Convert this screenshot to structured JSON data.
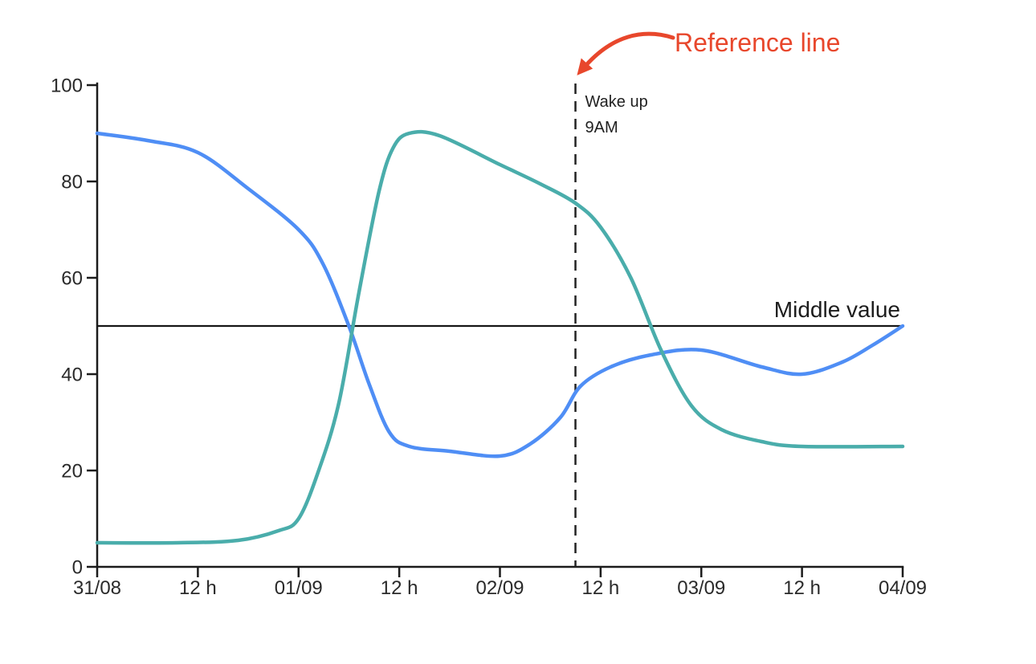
{
  "chart_data": {
    "type": "line",
    "title": "",
    "xlabel": "",
    "ylabel": "",
    "xlim_days": [
      0,
      4
    ],
    "ylim": [
      0,
      100
    ],
    "grid": false,
    "legend": "none",
    "x_ticks": [
      {
        "day": 0.0,
        "label": "31/08"
      },
      {
        "day": 0.5,
        "label": "12 h"
      },
      {
        "day": 1.0,
        "label": "01/09"
      },
      {
        "day": 1.5,
        "label": "12 h"
      },
      {
        "day": 2.0,
        "label": "02/09"
      },
      {
        "day": 2.5,
        "label": "12 h"
      },
      {
        "day": 3.0,
        "label": "03/09"
      },
      {
        "day": 3.5,
        "label": "12 h"
      },
      {
        "day": 4.0,
        "label": "04/09"
      }
    ],
    "y_ticks": [
      0,
      20,
      40,
      60,
      80,
      100
    ],
    "series": [
      {
        "name": "series-blue",
        "color": "#4f8ef5",
        "points": [
          [
            0.0,
            90
          ],
          [
            0.25,
            88.5
          ],
          [
            0.5,
            86
          ],
          [
            0.75,
            78.5
          ],
          [
            1.0,
            70
          ],
          [
            1.12,
            63
          ],
          [
            1.25,
            50
          ],
          [
            1.35,
            38
          ],
          [
            1.45,
            28
          ],
          [
            1.55,
            25
          ],
          [
            1.75,
            24
          ],
          [
            2.0,
            23
          ],
          [
            2.15,
            25.5
          ],
          [
            2.3,
            31
          ],
          [
            2.4,
            37.5
          ],
          [
            2.55,
            41.5
          ],
          [
            2.75,
            44
          ],
          [
            3.0,
            45
          ],
          [
            3.3,
            41.5
          ],
          [
            3.5,
            40
          ],
          [
            3.7,
            42.5
          ],
          [
            3.85,
            46
          ],
          [
            4.0,
            50
          ]
        ]
      },
      {
        "name": "series-teal",
        "color": "#4aadab",
        "points": [
          [
            0.0,
            5
          ],
          [
            0.4,
            5
          ],
          [
            0.7,
            5.5
          ],
          [
            0.9,
            7.5
          ],
          [
            1.0,
            10
          ],
          [
            1.1,
            20
          ],
          [
            1.2,
            34
          ],
          [
            1.3,
            57
          ],
          [
            1.4,
            78
          ],
          [
            1.47,
            87
          ],
          [
            1.55,
            90
          ],
          [
            1.7,
            89.5
          ],
          [
            2.0,
            83.5
          ],
          [
            2.2,
            79.5
          ],
          [
            2.375,
            75.5
          ],
          [
            2.5,
            70.5
          ],
          [
            2.65,
            60
          ],
          [
            2.8,
            45
          ],
          [
            2.95,
            33.5
          ],
          [
            3.1,
            28.5
          ],
          [
            3.3,
            26
          ],
          [
            3.5,
            25
          ],
          [
            4.0,
            25
          ]
        ]
      }
    ],
    "horizontal_reference": {
      "value": 50,
      "label": "Middle value",
      "color": "#161616"
    },
    "vertical_reference": {
      "day": 2.375,
      "style": "dashed",
      "color": "#222222",
      "label_line1": "Wake up",
      "label_line2": "9AM"
    },
    "callout": {
      "label": "Reference line",
      "color": "#e8472c"
    },
    "axis_color": "#1c1c1c"
  }
}
